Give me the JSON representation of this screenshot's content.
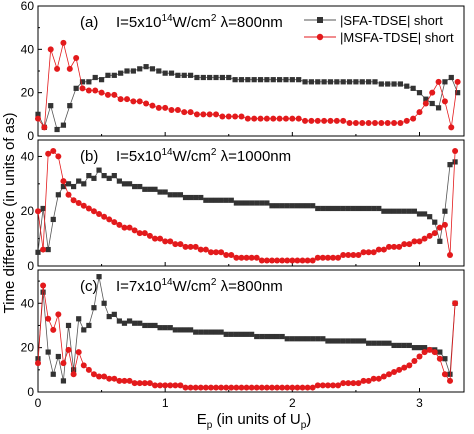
{
  "figure": {
    "ylabel": "Time difference (in units of as)",
    "xlabel_main": "E",
    "xlabel_sub": "p",
    "xlabel_rest": " (in units of U",
    "xlabel_sub2": "p",
    "xlabel_end": ")"
  },
  "legend": {
    "sfa": "|SFA-TDSE| short",
    "msfa": "|MSFA-TDSE| short"
  },
  "colors": {
    "sfa": "#333333",
    "msfa": "#e31a1c",
    "line_sfa": "#555555",
    "line_msfa": "#e31a1c"
  },
  "chart_data": [
    {
      "type": "line",
      "panel_label": "(a)",
      "condition": {
        "intensity_prefix": "I=5x10",
        "intensity_exp": "14",
        "intensity_unit": "W/cm",
        "unit_exp": "2",
        "wavelength": "λ=800nm"
      },
      "xlim": [
        0,
        3.35
      ],
      "ylim": [
        0,
        60
      ],
      "yticks": [
        "0",
        "20",
        "40",
        "60"
      ],
      "x": [
        0.0,
        0.05,
        0.1,
        0.15,
        0.2,
        0.25,
        0.3,
        0.35,
        0.4,
        0.45,
        0.5,
        0.55,
        0.6,
        0.65,
        0.7,
        0.75,
        0.8,
        0.85,
        0.9,
        0.95,
        1.0,
        1.05,
        1.1,
        1.15,
        1.2,
        1.25,
        1.3,
        1.35,
        1.4,
        1.45,
        1.5,
        1.55,
        1.6,
        1.65,
        1.7,
        1.75,
        1.8,
        1.85,
        1.9,
        1.95,
        2.0,
        2.05,
        2.1,
        2.15,
        2.2,
        2.25,
        2.3,
        2.35,
        2.4,
        2.45,
        2.5,
        2.55,
        2.6,
        2.65,
        2.7,
        2.75,
        2.8,
        2.85,
        2.9,
        2.95,
        3.0,
        3.05,
        3.1,
        3.15,
        3.2,
        3.25,
        3.3
      ],
      "series": [
        {
          "name": "|SFA-TDSE| short",
          "values": [
            10,
            4,
            14,
            3,
            5,
            14,
            22,
            25,
            25,
            27,
            26,
            28,
            28,
            29,
            30,
            30,
            31,
            32,
            31,
            30,
            29,
            29,
            28,
            28,
            28,
            27,
            27,
            27,
            27,
            27,
            27,
            26,
            26,
            26,
            26,
            26,
            26,
            26,
            26,
            26,
            26,
            26,
            25,
            25,
            25,
            25,
            25,
            25,
            25,
            25,
            25,
            25,
            25,
            25,
            24,
            24,
            24,
            24,
            23,
            22,
            20,
            17,
            15,
            13,
            25,
            27,
            20
          ]
        },
        {
          "name": "|MSFA-TDSE| short",
          "values": [
            8,
            4,
            40,
            31,
            43,
            31,
            36,
            22,
            21,
            21,
            20,
            19,
            19,
            17,
            17,
            16,
            16,
            15,
            14,
            13,
            13,
            12,
            12,
            11,
            11,
            10,
            10,
            10,
            10,
            9,
            9,
            9,
            9,
            8,
            8,
            8,
            8,
            8,
            8,
            8,
            8,
            8,
            7,
            7,
            7,
            7,
            7,
            7,
            7,
            6,
            6,
            6,
            6,
            6,
            6,
            6,
            6,
            6,
            7,
            8,
            11,
            15,
            20,
            25,
            16,
            4,
            25
          ]
        }
      ]
    },
    {
      "type": "line",
      "panel_label": "(b)",
      "condition": {
        "intensity_prefix": "I=5x10",
        "intensity_exp": "14",
        "intensity_unit": "W/cm",
        "unit_exp": "2",
        "wavelength": "λ=1000nm"
      },
      "xlim": [
        0,
        3.35
      ],
      "ylim": [
        0,
        46
      ],
      "yticks": [
        "0",
        "20",
        "40"
      ],
      "x": [
        0.0,
        0.04,
        0.08,
        0.12,
        0.16,
        0.2,
        0.24,
        0.28,
        0.32,
        0.36,
        0.4,
        0.44,
        0.48,
        0.52,
        0.56,
        0.6,
        0.64,
        0.68,
        0.72,
        0.76,
        0.8,
        0.84,
        0.88,
        0.92,
        0.96,
        1.0,
        1.04,
        1.08,
        1.12,
        1.16,
        1.2,
        1.24,
        1.28,
        1.32,
        1.36,
        1.4,
        1.44,
        1.48,
        1.52,
        1.56,
        1.6,
        1.64,
        1.68,
        1.72,
        1.76,
        1.8,
        1.84,
        1.88,
        1.92,
        1.96,
        2.0,
        2.04,
        2.08,
        2.12,
        2.16,
        2.2,
        2.24,
        2.28,
        2.32,
        2.36,
        2.4,
        2.44,
        2.48,
        2.52,
        2.56,
        2.6,
        2.64,
        2.68,
        2.72,
        2.76,
        2.8,
        2.84,
        2.88,
        2.92,
        2.96,
        3.0,
        3.04,
        3.08,
        3.12,
        3.16,
        3.2,
        3.24,
        3.28
      ],
      "series": [
        {
          "name": "|SFA-TDSE| short",
          "values": [
            5,
            21,
            6,
            17,
            26,
            29,
            30,
            29,
            31,
            30,
            33,
            32,
            35,
            33,
            32,
            33,
            31,
            30,
            30,
            29,
            29,
            28,
            28,
            28,
            27,
            27,
            26,
            26,
            26,
            25,
            25,
            25,
            25,
            24,
            24,
            24,
            24,
            24,
            24,
            23,
            23,
            23,
            23,
            23,
            23,
            23,
            22,
            22,
            22,
            22,
            22,
            22,
            22,
            22,
            22,
            21,
            21,
            21,
            21,
            21,
            21,
            21,
            21,
            21,
            21,
            21,
            21,
            21,
            20,
            20,
            20,
            20,
            20,
            20,
            20,
            19,
            19,
            18,
            16,
            9,
            20,
            37,
            38
          ]
        },
        {
          "name": "|MSFA-TDSE| short",
          "values": [
            20,
            6,
            41,
            42,
            40,
            31,
            26,
            24,
            23,
            22,
            21,
            20,
            19,
            18,
            17,
            16,
            15,
            14,
            14,
            13,
            12,
            12,
            11,
            10,
            10,
            9,
            9,
            8,
            8,
            7,
            7,
            7,
            6,
            6,
            5,
            5,
            5,
            4,
            4,
            3,
            3,
            3,
            3,
            3,
            2,
            2,
            2,
            2,
            2,
            2,
            2,
            2,
            2,
            2,
            2,
            3,
            3,
            3,
            3,
            3,
            4,
            4,
            4,
            4,
            5,
            5,
            5,
            6,
            6,
            7,
            7,
            7,
            8,
            8,
            9,
            9,
            10,
            11,
            12,
            14,
            15,
            4,
            42
          ]
        }
      ]
    },
    {
      "type": "line",
      "panel_label": "(c)",
      "condition": {
        "intensity_prefix": "I=7x10",
        "intensity_exp": "14",
        "intensity_unit": "W/cm",
        "unit_exp": "2",
        "wavelength": "λ=800nm"
      },
      "xlim": [
        0,
        3.35
      ],
      "ylim": [
        0,
        55
      ],
      "yticks": [
        "0",
        "20",
        "40"
      ],
      "xticks": [
        "0",
        "1",
        "2",
        "3"
      ],
      "x": [
        0.0,
        0.04,
        0.08,
        0.12,
        0.16,
        0.2,
        0.24,
        0.28,
        0.32,
        0.36,
        0.4,
        0.44,
        0.48,
        0.52,
        0.56,
        0.6,
        0.64,
        0.68,
        0.72,
        0.76,
        0.8,
        0.84,
        0.88,
        0.92,
        0.96,
        1.0,
        1.04,
        1.08,
        1.12,
        1.16,
        1.2,
        1.24,
        1.28,
        1.32,
        1.36,
        1.4,
        1.44,
        1.48,
        1.52,
        1.56,
        1.6,
        1.64,
        1.68,
        1.72,
        1.76,
        1.8,
        1.84,
        1.88,
        1.92,
        1.96,
        2.0,
        2.04,
        2.08,
        2.12,
        2.16,
        2.2,
        2.24,
        2.28,
        2.32,
        2.36,
        2.4,
        2.44,
        2.48,
        2.52,
        2.56,
        2.6,
        2.64,
        2.68,
        2.72,
        2.76,
        2.8,
        2.84,
        2.88,
        2.92,
        2.96,
        3.0,
        3.04,
        3.08,
        3.12,
        3.16,
        3.2,
        3.24,
        3.28
      ],
      "series": [
        {
          "name": "|SFA-TDSE| short",
          "values": [
            15,
            45,
            18,
            8,
            16,
            5,
            30,
            10,
            33,
            28,
            30,
            38,
            52,
            40,
            34,
            35,
            32,
            31,
            32,
            31,
            31,
            30,
            30,
            30,
            29,
            29,
            29,
            28,
            28,
            28,
            28,
            27,
            27,
            27,
            27,
            27,
            27,
            26,
            26,
            26,
            26,
            26,
            26,
            25,
            25,
            25,
            25,
            25,
            25,
            24,
            24,
            24,
            24,
            24,
            24,
            24,
            24,
            23,
            23,
            23,
            23,
            23,
            23,
            23,
            23,
            22,
            22,
            22,
            22,
            22,
            21,
            21,
            21,
            21,
            20,
            20,
            20,
            19,
            19,
            18,
            15,
            8,
            40
          ]
        },
        {
          "name": "|MSFA-TDSE| short",
          "values": [
            13,
            48,
            33,
            28,
            35,
            13,
            19,
            8,
            18,
            12,
            10,
            8,
            7,
            7,
            6,
            6,
            5,
            5,
            5,
            4,
            4,
            4,
            4,
            3,
            3,
            3,
            3,
            3,
            3,
            2,
            2,
            2,
            2,
            2,
            2,
            2,
            2,
            2,
            2,
            2,
            2,
            2,
            2,
            2,
            2,
            2,
            2,
            2,
            2,
            2,
            2,
            2,
            2,
            2,
            2,
            3,
            3,
            3,
            3,
            3,
            4,
            4,
            4,
            4,
            5,
            5,
            6,
            6,
            7,
            8,
            9,
            10,
            11,
            12,
            14,
            16,
            18,
            19,
            18,
            15,
            8,
            5,
            40
          ]
        }
      ]
    }
  ]
}
